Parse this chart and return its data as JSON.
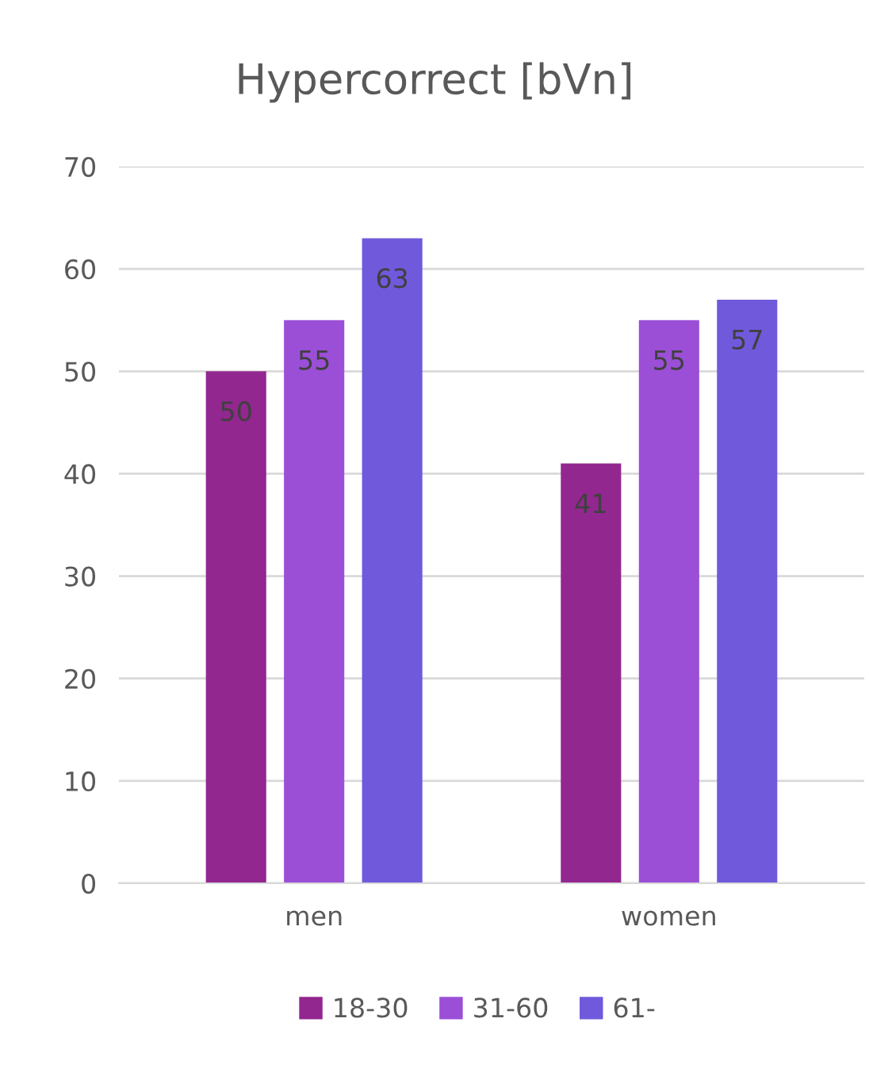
{
  "chart_data": {
    "type": "bar",
    "title": "Hypercorrect [bVn]",
    "categories": [
      "men",
      "women"
    ],
    "series": [
      {
        "name": "18-30",
        "color": "#92278f",
        "values": [
          50,
          41
        ]
      },
      {
        "name": "31-60",
        "color": "#9b4fd6",
        "values": [
          55,
          55
        ]
      },
      {
        "name": "61-",
        "color": "#7159dc",
        "values": [
          63,
          57
        ]
      }
    ],
    "ylim": [
      0,
      70
    ],
    "yticks": [
      0,
      10,
      20,
      30,
      40,
      50,
      60,
      70
    ],
    "grid": "y",
    "legend": "bottom",
    "data_labels": true
  }
}
